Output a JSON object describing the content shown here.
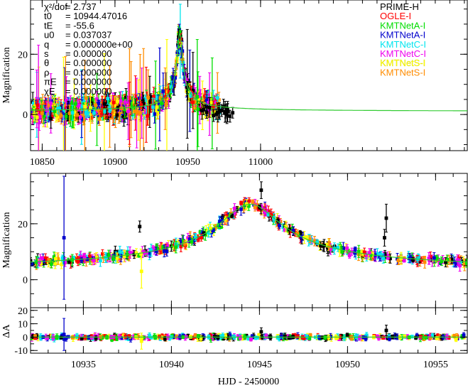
{
  "chart_data": [
    {
      "type": "scatter",
      "panel": "full-season",
      "ylabel": "Magnification",
      "xlim": [
        10842,
        11142
      ],
      "ylim": [
        -12,
        38
      ],
      "xticks": [
        10850,
        10900,
        10950,
        11000
      ],
      "yticks": [
        0,
        20
      ],
      "params": [
        {
          "name": "χ²/dof",
          "value": "= 2.737"
        },
        {
          "name": "t0",
          "value": "= 10944.47016"
        },
        {
          "name": "tE",
          "value": "= -55.6"
        },
        {
          "name": "u0",
          "value": "= 0.037037"
        },
        {
          "name": "q",
          "value": "= 0.000000e+00"
        },
        {
          "name": "s",
          "value": "= 0.000000"
        },
        {
          "name": "θ",
          "value": "= 0.000000"
        },
        {
          "name": "ρ",
          "value": "= 0.000000"
        },
        {
          "name": "πE",
          "value": "= 0.000000"
        },
        {
          "name": "χE",
          "value": "= 0.000000"
        }
      ],
      "series": [
        {
          "name": "PRIME-H",
          "color": "#000000"
        },
        {
          "name": "OGLE-I",
          "color": "#ff0000"
        },
        {
          "name": "KMTNetA-I",
          "color": "#00dd00"
        },
        {
          "name": "KMTNetA-I",
          "color": "#0000cc"
        },
        {
          "name": "KMTNetC-I",
          "color": "#00e5ee"
        },
        {
          "name": "KMTNetC-I",
          "color": "#ee00ee"
        },
        {
          "name": "KMTNetS-I",
          "color": "#ffff00"
        },
        {
          "name": "KMTNetS-I",
          "color": "#ff8c00"
        }
      ],
      "model": {
        "t0": 10944.47,
        "peak": 27.0,
        "base": 1.0,
        "width": 2.6,
        "color": "#33cc33"
      }
    },
    {
      "type": "scatter",
      "panel": "zoom",
      "ylabel": "Magnification",
      "xlim": [
        10932,
        10956.8
      ],
      "ylim": [
        -10,
        38
      ],
      "xticks": [
        10935,
        10940,
        10945,
        10950,
        10955
      ],
      "yticks": [
        0,
        20
      ],
      "model": {
        "t0": 10944.47,
        "peak": 27.0,
        "base": 3.0,
        "width": 2.6
      }
    },
    {
      "type": "scatter",
      "panel": "residuals",
      "ylabel": "ΔA",
      "xlabel": "HJD - 2450000",
      "xlim": [
        10932,
        10956.8
      ],
      "ylim": [
        -12,
        22
      ],
      "yticks": [
        -10,
        0,
        10,
        20
      ],
      "ytick_labels": [
        "-10",
        "0",
        "10",
        "20"
      ]
    }
  ]
}
